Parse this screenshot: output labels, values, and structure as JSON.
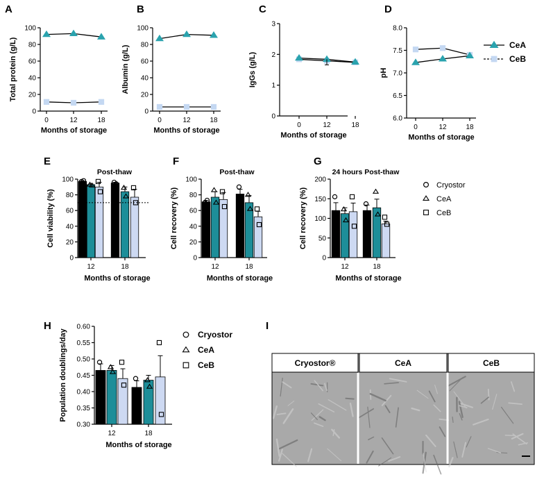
{
  "colors": {
    "cryostor": "#000000",
    "cea": "#1d8e99",
    "ceb": "#cdd9f2",
    "ceb_point": "#c4d8f2",
    "cea_point": "#2aa3ae",
    "micrograph": "#a9a9a9"
  },
  "panels": {
    "A": "A",
    "B": "B",
    "C": "C",
    "D": "D",
    "E": "E",
    "F": "F",
    "G": "G",
    "H": "H",
    "I": "I"
  },
  "legend_top": {
    "cea": "CeA",
    "ceb": "CeB"
  },
  "legend_bars": {
    "cryostor": "Cryostor",
    "cea": "CeA",
    "ceb": "CeB"
  },
  "images": {
    "headers": [
      "Cryostor®",
      "CeA",
      "CeB"
    ]
  },
  "chart_data": [
    {
      "id": "A",
      "type": "line",
      "ylabel": "Total protein (g/L)",
      "xlabel": "Months of storage",
      "categories": [
        "0",
        "12",
        "18"
      ],
      "ylim": [
        0,
        100
      ],
      "yticks": [
        "0",
        "20",
        "40",
        "60",
        "80",
        "100"
      ],
      "series": [
        {
          "name": "CeA",
          "marker": "triangle",
          "values": [
            92,
            93,
            89
          ]
        },
        {
          "name": "CeB",
          "marker": "square",
          "values": [
            11,
            10,
            11
          ]
        }
      ]
    },
    {
      "id": "B",
      "type": "line",
      "ylabel": "Albumin (g/L)",
      "xlabel": "Months of storage",
      "categories": [
        "0",
        "12",
        "18"
      ],
      "ylim": [
        0,
        100
      ],
      "yticks": [
        "0",
        "20",
        "40",
        "60",
        "80",
        "100"
      ],
      "series": [
        {
          "name": "CeA",
          "marker": "triangle",
          "values": [
            87,
            92,
            91
          ]
        },
        {
          "name": "CeB",
          "marker": "square",
          "values": [
            5,
            5,
            5
          ]
        }
      ]
    },
    {
      "id": "C",
      "type": "line",
      "ylabel": "IgGs (g/L)",
      "xlabel": "Months of storage",
      "categories": [
        "0",
        "12",
        "18"
      ],
      "ylim": [
        0,
        3
      ],
      "yticks": [
        "0",
        "1",
        "2",
        "3"
      ],
      "series": [
        {
          "name": "CeA",
          "marker": "triangle",
          "values": [
            1.88,
            1.84,
            1.75
          ]
        },
        {
          "name": "CeB",
          "marker": "square",
          "values": [
            1.84,
            1.79,
            1.74
          ]
        }
      ]
    },
    {
      "id": "D",
      "type": "line",
      "ylabel": "pH",
      "xlabel": "Months of storage",
      "categories": [
        "0",
        "12",
        "18"
      ],
      "ylim": [
        6.0,
        8.0
      ],
      "yticks": [
        "6.0",
        "6.5",
        "7.0",
        "7.5",
        "8.0"
      ],
      "series": [
        {
          "name": "CeA",
          "marker": "triangle",
          "values": [
            7.23,
            7.31,
            7.38
          ]
        },
        {
          "name": "CeB",
          "marker": "square",
          "values": [
            7.52,
            7.55,
            7.4
          ]
        }
      ]
    },
    {
      "id": "E",
      "type": "bar",
      "title": "Post-thaw",
      "ylabel": "Cell viability (%)",
      "xlabel": "Months of storage",
      "categories": [
        "12",
        "18"
      ],
      "ylim": [
        0,
        100
      ],
      "yticks": [
        "0",
        "20",
        "40",
        "60",
        "80",
        "100"
      ],
      "reference_line": 70,
      "series": [
        {
          "name": "Cryostor",
          "values": [
            97,
            95
          ],
          "err": [
            1,
            1
          ],
          "points": [
            [
              97,
              98
            ],
            [
              96,
              94
            ]
          ]
        },
        {
          "name": "CeA",
          "values": [
            93,
            84
          ],
          "err": [
            1,
            6
          ],
          "points": [
            [
              93,
              92
            ],
            [
              89,
              78
            ]
          ]
        },
        {
          "name": "CeB",
          "values": [
            90,
            77
          ],
          "err": [
            6,
            10
          ],
          "points": [
            [
              97,
              84
            ],
            [
              89,
              70
            ]
          ]
        }
      ]
    },
    {
      "id": "F",
      "type": "bar",
      "title": "Post-thaw",
      "ylabel": "Cell recovery (%)",
      "xlabel": "Months of storage",
      "categories": [
        "12",
        "18"
      ],
      "ylim": [
        0,
        100
      ],
      "yticks": [
        "0",
        "20",
        "40",
        "60",
        "80",
        "100"
      ],
      "series": [
        {
          "name": "Cryostor",
          "values": [
            71,
            81
          ],
          "err": [
            2,
            6
          ],
          "points": [
            [
              70,
              73
            ],
            [
              90,
              75
            ]
          ]
        },
        {
          "name": "CeA",
          "values": [
            77,
            70
          ],
          "err": [
            7,
            9
          ],
          "points": [
            [
              86,
              70
            ],
            [
              80,
              62
            ]
          ]
        },
        {
          "name": "CeB",
          "values": [
            74,
            52
          ],
          "err": [
            9,
            7
          ],
          "points": [
            [
              84,
              65
            ],
            [
              62,
              42
            ]
          ]
        }
      ]
    },
    {
      "id": "G",
      "type": "bar",
      "title": "24 hours Post-thaw",
      "ylabel": "Cell recovery (%)",
      "xlabel": "Months of storage",
      "categories": [
        "12",
        "18"
      ],
      "ylim": [
        0,
        200
      ],
      "yticks": [
        "0",
        "50",
        "100",
        "150",
        "200"
      ],
      "series": [
        {
          "name": "Cryostor",
          "values": [
            120,
            120
          ],
          "err": [
            20,
            14
          ],
          "points": [
            [
              155,
              105
            ],
            [
              137,
              103
            ]
          ]
        },
        {
          "name": "CeA",
          "values": [
            112,
            127
          ],
          "err": [
            15,
            22
          ],
          "points": [
            [
              123,
              95
            ],
            [
              168,
              110
            ]
          ]
        },
        {
          "name": "CeB",
          "values": [
            117,
            86
          ],
          "err": [
            22,
            7
          ],
          "points": [
            [
              155,
              80
            ],
            [
              103,
              85
            ]
          ]
        }
      ]
    },
    {
      "id": "H",
      "type": "bar",
      "ylabel": "Population doublings/day",
      "xlabel": "Months of storage",
      "categories": [
        "12",
        "18"
      ],
      "ylim": [
        0.3,
        0.6
      ],
      "yticks": [
        "0.30",
        "0.35",
        "0.40",
        "0.45",
        "0.50",
        "0.55",
        "0.60"
      ],
      "series": [
        {
          "name": "Cryostor",
          "values": [
            0.465,
            0.413
          ],
          "err": [
            0.02,
            0.02
          ],
          "points": [
            [
              0.49,
              0.455
            ],
            [
              0.44,
              0.405
            ]
          ]
        },
        {
          "name": "CeA",
          "values": [
            0.465,
            0.435
          ],
          "err": [
            0.015,
            0.015
          ],
          "points": [
            [
              0.475,
              0.46
            ],
            [
              0.435,
              0.415
            ]
          ]
        },
        {
          "name": "CeB",
          "values": [
            0.44,
            0.445
          ],
          "err": [
            0.03,
            0.065
          ],
          "points": [
            [
              0.49,
              0.42
            ],
            [
              0.55,
              0.33
            ]
          ]
        }
      ]
    }
  ]
}
